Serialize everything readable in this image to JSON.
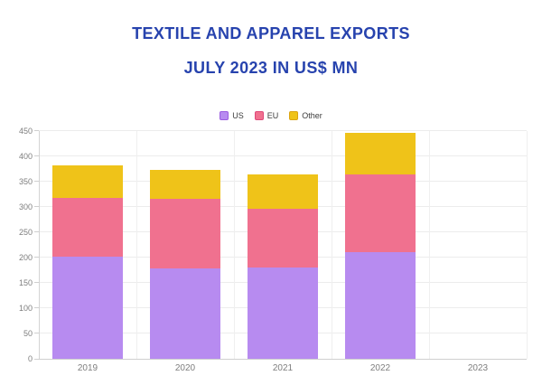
{
  "title": {
    "line1": "TEXTILE AND APPAREL EXPORTS",
    "line2": "JULY 2023 IN US$ MN"
  },
  "colors": {
    "title": "#2743ae",
    "us": "#b78bf0",
    "eu": "#f0718f",
    "other": "#efc319",
    "us_border": "#9a5be0",
    "eu_border": "#e0477a",
    "other_border": "#dba410",
    "axis_text": "#7e7e7e",
    "gridline": "#ececec",
    "background": "#ffffff"
  },
  "legend": {
    "items": [
      {
        "label": "US",
        "color": "#b78bf0",
        "border": "#9a5be0"
      },
      {
        "label": "EU",
        "color": "#f0718f",
        "border": "#e0477a"
      },
      {
        "label": "Other",
        "color": "#efc319",
        "border": "#dba410"
      }
    ]
  },
  "chart_data": {
    "type": "bar",
    "stacked": true,
    "title": "TEXTILE AND APPAREL EXPORTS JULY 2023 IN US$ MN",
    "categories": [
      "2019",
      "2020",
      "2021",
      "2022",
      "2023"
    ],
    "series": [
      {
        "name": "US",
        "color": "#b78bf0",
        "values": [
          202,
          178,
          181,
          210,
          0
        ]
      },
      {
        "name": "EU",
        "color": "#f0718f",
        "values": [
          116,
          138,
          116,
          155,
          0
        ]
      },
      {
        "name": "Other",
        "color": "#efc319",
        "values": [
          64,
          57,
          68,
          81,
          0
        ]
      }
    ],
    "totals": [
      382,
      373,
      365,
      446,
      0
    ],
    "xlabel": "",
    "ylabel": "",
    "ylim": [
      0,
      450
    ],
    "ytick_step": 50,
    "yticks": [
      "0",
      "50",
      "100",
      "150",
      "200",
      "250",
      "300",
      "350",
      "400",
      "450"
    ],
    "grid": true,
    "legend_position": "top-center"
  }
}
